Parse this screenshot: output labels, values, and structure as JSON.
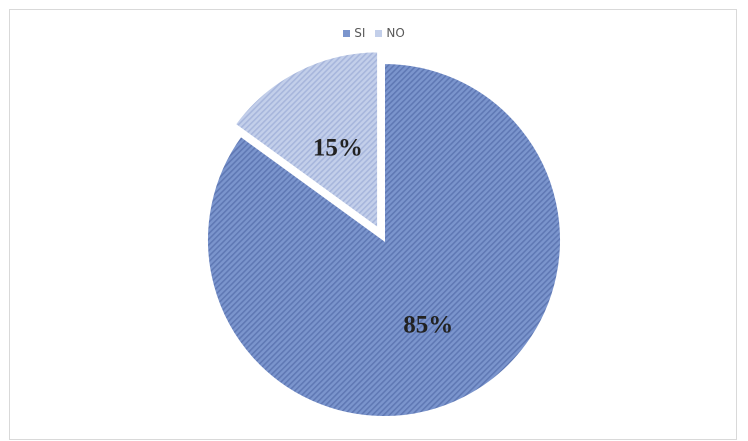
{
  "chart_data": {
    "type": "pie",
    "title": "",
    "legend_position": "top-center",
    "slices": [
      {
        "label": "SI",
        "value": 85,
        "display": "85%",
        "color": "#7b95cd",
        "stripe": "#5f78b4"
      },
      {
        "label": "NO",
        "value": 15,
        "display": "15%",
        "color": "#c3cfea",
        "stripe": "#a7b6dc",
        "exploded": true
      }
    ]
  }
}
